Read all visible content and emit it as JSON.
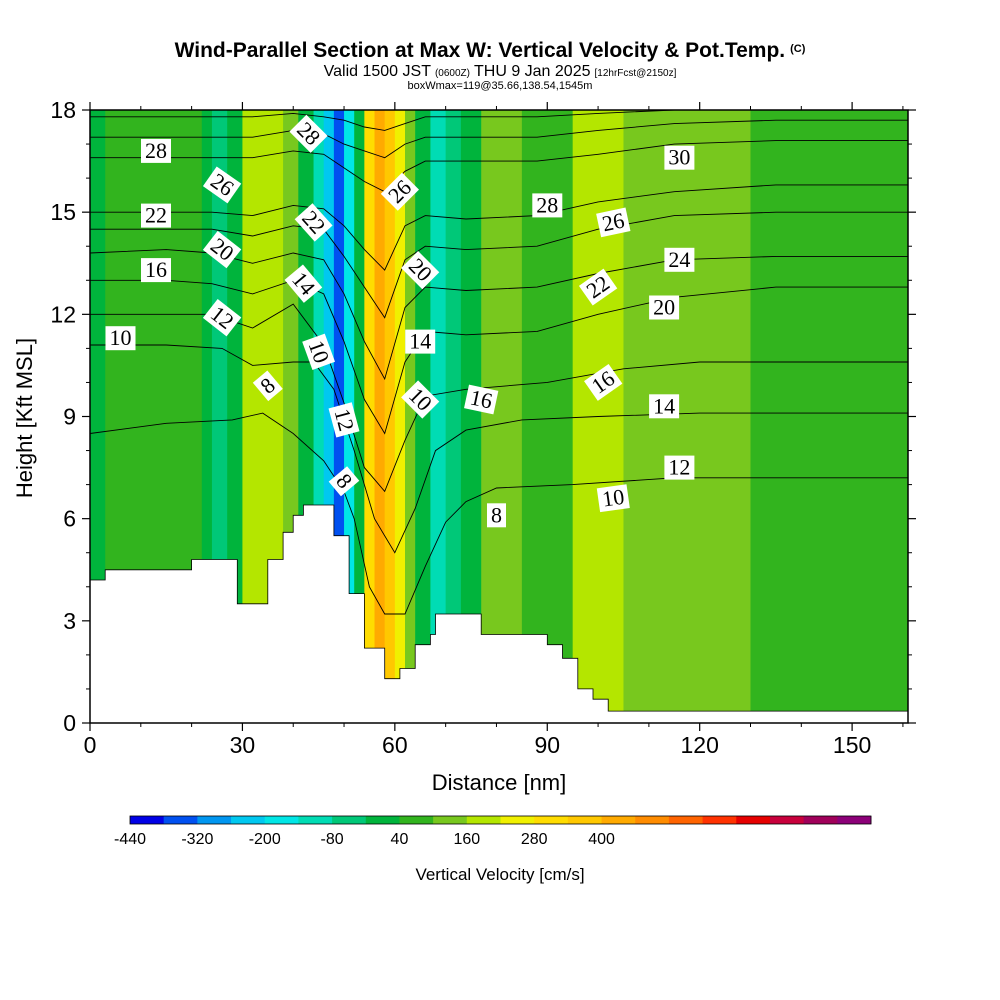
{
  "header": {
    "title": "Wind-Parallel Section at Max W: Vertical Velocity & Pot.Temp.",
    "copyright": "(C)",
    "subtitle_pre": "Valid 1500 JST",
    "subtitle_utc": "(0600Z)",
    "subtitle_mid": "THU 9 Jan 2025",
    "subtitle_fcst": "[12hrFcst@2150z]",
    "box_info": "boxWmax=119@35.66,138.54,1545m"
  },
  "chart_data": {
    "type": "heatmap",
    "xlabel": "Distance [nm]",
    "ylabel": "Height [Kft MSL]",
    "xlim": [
      0,
      161
    ],
    "ylim": [
      0,
      18
    ],
    "x_ticks": [
      0,
      30,
      60,
      90,
      120,
      150
    ],
    "y_ticks": [
      0,
      3,
      6,
      9,
      12,
      15,
      18
    ],
    "colorbar": {
      "label": "Vertical Velocity [cm/s]",
      "tick_labels": [
        "-440",
        "-320",
        "-200",
        "-80",
        "40",
        "160",
        "280",
        "400"
      ],
      "colors": [
        "#0000e6",
        "#0050f0",
        "#0096f0",
        "#00c8f0",
        "#00e6e6",
        "#00dcb4",
        "#00c878",
        "#00b43c",
        "#32b41e",
        "#78c81e",
        "#b4e600",
        "#f0f000",
        "#ffdc00",
        "#ffc800",
        "#ffaa00",
        "#ff8c00",
        "#ff6400",
        "#ff3200",
        "#e60000",
        "#c8003c",
        "#a0005a",
        "#8c0078"
      ]
    },
    "terrain": [
      [
        0,
        4.2
      ],
      [
        3,
        4.2
      ],
      [
        3,
        4.5
      ],
      [
        20,
        4.5
      ],
      [
        20,
        4.8
      ],
      [
        29,
        4.8
      ],
      [
        29,
        3.5
      ],
      [
        35,
        3.5
      ],
      [
        35,
        4.8
      ],
      [
        38,
        4.8
      ],
      [
        38,
        5.6
      ],
      [
        40,
        5.6
      ],
      [
        40,
        6.1
      ],
      [
        42,
        6.1
      ],
      [
        42,
        6.4
      ],
      [
        48,
        6.4
      ],
      [
        48,
        5.5
      ],
      [
        51,
        5.5
      ],
      [
        51,
        3.8
      ],
      [
        54,
        3.8
      ],
      [
        54,
        2.2
      ],
      [
        58,
        2.2
      ],
      [
        58,
        1.3
      ],
      [
        61,
        1.3
      ],
      [
        61,
        1.6
      ],
      [
        64,
        1.6
      ],
      [
        64,
        2.3
      ],
      [
        67,
        2.3
      ],
      [
        67,
        2.6
      ],
      [
        68,
        2.6
      ],
      [
        68,
        3.2
      ],
      [
        77,
        3.2
      ],
      [
        77,
        2.6
      ],
      [
        90,
        2.6
      ],
      [
        90,
        2.3
      ],
      [
        93,
        2.3
      ],
      [
        93,
        1.9
      ],
      [
        96,
        1.9
      ],
      [
        96,
        1.0
      ],
      [
        99,
        1.0
      ],
      [
        99,
        0.7
      ],
      [
        102,
        0.7
      ],
      [
        102,
        0.35
      ],
      [
        161,
        0.35
      ]
    ],
    "w_bands": [
      {
        "x0": 0,
        "x1": 3,
        "w": -60
      },
      {
        "x0": 3,
        "x1": 22,
        "w": 20
      },
      {
        "x0": 22,
        "x1": 24,
        "w": -30
      },
      {
        "x0": 24,
        "x1": 27,
        "w": -110
      },
      {
        "x0": 27,
        "x1": 30,
        "w": -40
      },
      {
        "x0": 30,
        "x1": 34,
        "w": 110
      },
      {
        "x0": 34,
        "x1": 38,
        "w": 150
      },
      {
        "x0": 38,
        "x1": 41,
        "w": 60
      },
      {
        "x0": 41,
        "x1": 44,
        "w": -60
      },
      {
        "x0": 44,
        "x1": 46,
        "w": -200
      },
      {
        "x0": 46,
        "x1": 48,
        "w": -320
      },
      {
        "x0": 48,
        "x1": 50,
        "w": -440
      },
      {
        "x0": 50,
        "x1": 52,
        "w": -260
      },
      {
        "x0": 52,
        "x1": 54,
        "w": -60
      },
      {
        "x0": 54,
        "x1": 56,
        "w": 250
      },
      {
        "x0": 56,
        "x1": 58,
        "w": 380
      },
      {
        "x0": 58,
        "x1": 60,
        "w": 300
      },
      {
        "x0": 60,
        "x1": 62,
        "w": 180
      },
      {
        "x0": 62,
        "x1": 64,
        "w": 60
      },
      {
        "x0": 64,
        "x1": 67,
        "w": -60
      },
      {
        "x0": 67,
        "x1": 70,
        "w": -150
      },
      {
        "x0": 70,
        "x1": 73,
        "w": -100
      },
      {
        "x0": 73,
        "x1": 77,
        "w": -40
      },
      {
        "x0": 77,
        "x1": 85,
        "w": 40
      },
      {
        "x0": 85,
        "x1": 90,
        "w": 20
      },
      {
        "x0": 90,
        "x1": 95,
        "w": 30
      },
      {
        "x0": 95,
        "x1": 105,
        "w": 120
      },
      {
        "x0": 105,
        "x1": 115,
        "w": 60
      },
      {
        "x0": 115,
        "x1": 130,
        "w": 40
      },
      {
        "x0": 130,
        "x1": 145,
        "w": -20
      },
      {
        "x0": 145,
        "x1": 161,
        "w": 20
      }
    ],
    "theta_contours": [
      {
        "level": 8,
        "points": [
          [
            0,
            8.5
          ],
          [
            15,
            8.8
          ],
          [
            28,
            8.9
          ],
          [
            34,
            9.1
          ],
          [
            40,
            8.5
          ],
          [
            46,
            7.7
          ],
          [
            50,
            6.8
          ],
          [
            52,
            6.0
          ],
          [
            55,
            4.0
          ],
          [
            58,
            3.2
          ],
          [
            62,
            3.2
          ],
          [
            66,
            4.6
          ],
          [
            70,
            5.9
          ],
          [
            74,
            6.5
          ],
          [
            80,
            6.9
          ],
          [
            95,
            7.0
          ],
          [
            115,
            7.2
          ],
          [
            135,
            7.2
          ],
          [
            161,
            7.2
          ]
        ]
      },
      {
        "level": 10,
        "points": [
          [
            0,
            11.1
          ],
          [
            15,
            11.1
          ],
          [
            26,
            11.0
          ],
          [
            32,
            10.5
          ],
          [
            40,
            10.6
          ],
          [
            44,
            10.6
          ],
          [
            48,
            9.8
          ],
          [
            52,
            8.0
          ],
          [
            56,
            6.0
          ],
          [
            60,
            5.0
          ],
          [
            64,
            6.3
          ],
          [
            68,
            8.0
          ],
          [
            74,
            8.6
          ],
          [
            85,
            8.9
          ],
          [
            100,
            9.0
          ],
          [
            120,
            9.1
          ],
          [
            140,
            9.1
          ],
          [
            161,
            9.1
          ]
        ]
      },
      {
        "level": 12,
        "points": [
          [
            0,
            12.0
          ],
          [
            15,
            12.0
          ],
          [
            24,
            12.0
          ],
          [
            32,
            11.6
          ],
          [
            40,
            12.3
          ],
          [
            46,
            11.1
          ],
          [
            50,
            9.4
          ],
          [
            54,
            7.5
          ],
          [
            58,
            6.8
          ],
          [
            62,
            8.3
          ],
          [
            66,
            9.6
          ],
          [
            74,
            9.8
          ],
          [
            90,
            10.0
          ],
          [
            105,
            10.4
          ],
          [
            120,
            10.6
          ],
          [
            140,
            10.6
          ],
          [
            161,
            10.6
          ]
        ]
      },
      {
        "level": 14,
        "points": [
          [
            0,
            13.0
          ],
          [
            15,
            13.0
          ],
          [
            24,
            12.9
          ],
          [
            32,
            12.6
          ],
          [
            40,
            13.0
          ],
          [
            46,
            12.6
          ],
          [
            50,
            11.2
          ],
          [
            54,
            9.5
          ],
          [
            58,
            8.5
          ],
          [
            62,
            10.6
          ],
          [
            66,
            11.5
          ],
          [
            74,
            11.4
          ],
          [
            88,
            11.5
          ],
          [
            100,
            12.0
          ],
          [
            115,
            12.5
          ],
          [
            135,
            12.8
          ],
          [
            161,
            12.8
          ]
        ]
      },
      {
        "level": 16,
        "points": [
          [
            0,
            13.8
          ],
          [
            15,
            13.9
          ],
          [
            24,
            13.8
          ],
          [
            32,
            13.5
          ],
          [
            40,
            13.8
          ],
          [
            46,
            13.6
          ],
          [
            50,
            12.6
          ],
          [
            54,
            11.2
          ],
          [
            58,
            10.1
          ],
          [
            62,
            12.2
          ],
          [
            66,
            12.8
          ],
          [
            74,
            12.7
          ],
          [
            88,
            12.8
          ],
          [
            100,
            13.2
          ],
          [
            115,
            13.6
          ],
          [
            135,
            13.7
          ],
          [
            161,
            13.7
          ]
        ]
      },
      {
        "level": 20,
        "points": [
          [
            0,
            14.5
          ],
          [
            15,
            14.5
          ],
          [
            24,
            14.5
          ],
          [
            32,
            14.3
          ],
          [
            40,
            14.6
          ],
          [
            46,
            14.5
          ],
          [
            50,
            13.7
          ],
          [
            54,
            12.8
          ],
          [
            58,
            11.9
          ],
          [
            62,
            13.6
          ],
          [
            66,
            14.0
          ],
          [
            74,
            13.9
          ],
          [
            88,
            14.0
          ],
          [
            100,
            14.5
          ],
          [
            115,
            14.9
          ],
          [
            135,
            15.0
          ],
          [
            161,
            15.0
          ]
        ]
      },
      {
        "level": 22,
        "points": [
          [
            0,
            15.0
          ],
          [
            15,
            15.0
          ],
          [
            24,
            15.0
          ],
          [
            32,
            14.9
          ],
          [
            40,
            15.2
          ],
          [
            46,
            15.1
          ],
          [
            50,
            14.6
          ],
          [
            54,
            13.9
          ],
          [
            58,
            13.3
          ],
          [
            62,
            14.6
          ],
          [
            66,
            14.9
          ],
          [
            74,
            14.8
          ],
          [
            88,
            14.9
          ],
          [
            100,
            15.3
          ],
          [
            115,
            15.6
          ],
          [
            135,
            15.8
          ],
          [
            161,
            15.8
          ]
        ]
      },
      {
        "level": 26,
        "points": [
          [
            0,
            16.6
          ],
          [
            15,
            16.6
          ],
          [
            24,
            16.6
          ],
          [
            32,
            16.6
          ],
          [
            40,
            16.8
          ],
          [
            46,
            16.7
          ],
          [
            50,
            16.3
          ],
          [
            54,
            15.9
          ],
          [
            58,
            15.6
          ],
          [
            62,
            16.2
          ],
          [
            66,
            16.5
          ],
          [
            74,
            16.5
          ],
          [
            88,
            16.5
          ],
          [
            100,
            16.7
          ],
          [
            115,
            17.0
          ],
          [
            135,
            17.1
          ],
          [
            161,
            17.1
          ]
        ]
      },
      {
        "level": 28,
        "points": [
          [
            0,
            17.2
          ],
          [
            15,
            17.2
          ],
          [
            24,
            17.2
          ],
          [
            32,
            17.2
          ],
          [
            40,
            17.4
          ],
          [
            46,
            17.3
          ],
          [
            50,
            17.0
          ],
          [
            54,
            16.8
          ],
          [
            58,
            16.6
          ],
          [
            62,
            17.0
          ],
          [
            66,
            17.2
          ],
          [
            74,
            17.2
          ],
          [
            88,
            17.2
          ],
          [
            100,
            17.4
          ],
          [
            115,
            17.6
          ],
          [
            135,
            17.7
          ],
          [
            161,
            17.7
          ]
        ]
      },
      {
        "level": 30,
        "points": [
          [
            0,
            17.8
          ],
          [
            15,
            17.8
          ],
          [
            24,
            17.8
          ],
          [
            32,
            17.8
          ],
          [
            40,
            17.9
          ],
          [
            46,
            17.8
          ],
          [
            50,
            17.7
          ],
          [
            54,
            17.5
          ],
          [
            58,
            17.4
          ],
          [
            62,
            17.6
          ],
          [
            66,
            17.8
          ],
          [
            74,
            17.8
          ],
          [
            88,
            17.8
          ],
          [
            100,
            17.9
          ],
          [
            115,
            18.0
          ],
          [
            135,
            18.0
          ],
          [
            161,
            18.0
          ]
        ]
      }
    ],
    "contour_labels": [
      {
        "text": "28",
        "x": 13,
        "y": 16.8,
        "angle": 0
      },
      {
        "text": "26",
        "x": 26,
        "y": 15.8,
        "angle": 35
      },
      {
        "text": "22",
        "x": 13,
        "y": 14.9,
        "angle": 0
      },
      {
        "text": "20",
        "x": 26,
        "y": 13.9,
        "angle": 38
      },
      {
        "text": "16",
        "x": 13,
        "y": 13.3,
        "angle": 0
      },
      {
        "text": "12",
        "x": 26,
        "y": 11.9,
        "angle": 38
      },
      {
        "text": "10",
        "x": 6,
        "y": 11.3,
        "angle": 0
      },
      {
        "text": "8",
        "x": 35,
        "y": 9.9,
        "angle": -40
      },
      {
        "text": "28",
        "x": 43,
        "y": 17.3,
        "angle": 45
      },
      {
        "text": "22",
        "x": 44,
        "y": 14.7,
        "angle": 48
      },
      {
        "text": "14",
        "x": 42,
        "y": 12.9,
        "angle": 50
      },
      {
        "text": "10",
        "x": 45,
        "y": 10.9,
        "angle": 70
      },
      {
        "text": "12",
        "x": 50,
        "y": 8.9,
        "angle": 75
      },
      {
        "text": "8",
        "x": 50,
        "y": 7.1,
        "angle": 50
      },
      {
        "text": "26",
        "x": 61,
        "y": 15.6,
        "angle": -45
      },
      {
        "text": "20",
        "x": 65,
        "y": 13.3,
        "angle": 45
      },
      {
        "text": "14",
        "x": 65,
        "y": 11.2,
        "angle": 0
      },
      {
        "text": "10",
        "x": 65,
        "y": 9.5,
        "angle": 45
      },
      {
        "text": "16",
        "x": 77,
        "y": 9.5,
        "angle": 12
      },
      {
        "text": "8",
        "x": 80,
        "y": 6.1,
        "angle": 0
      },
      {
        "text": "28",
        "x": 90,
        "y": 15.2,
        "angle": 0
      },
      {
        "text": "26",
        "x": 103,
        "y": 14.7,
        "angle": -12
      },
      {
        "text": "22",
        "x": 100,
        "y": 12.8,
        "angle": -35
      },
      {
        "text": "16",
        "x": 101,
        "y": 10.0,
        "angle": -35
      },
      {
        "text": "10",
        "x": 103,
        "y": 6.6,
        "angle": -8
      },
      {
        "text": "30",
        "x": 116,
        "y": 16.6,
        "angle": 0
      },
      {
        "text": "24",
        "x": 116,
        "y": 13.6,
        "angle": 0
      },
      {
        "text": "20",
        "x": 113,
        "y": 12.2,
        "angle": 0
      },
      {
        "text": "14",
        "x": 113,
        "y": 9.3,
        "angle": 0
      },
      {
        "text": "12",
        "x": 116,
        "y": 7.5,
        "angle": 0
      }
    ]
  }
}
